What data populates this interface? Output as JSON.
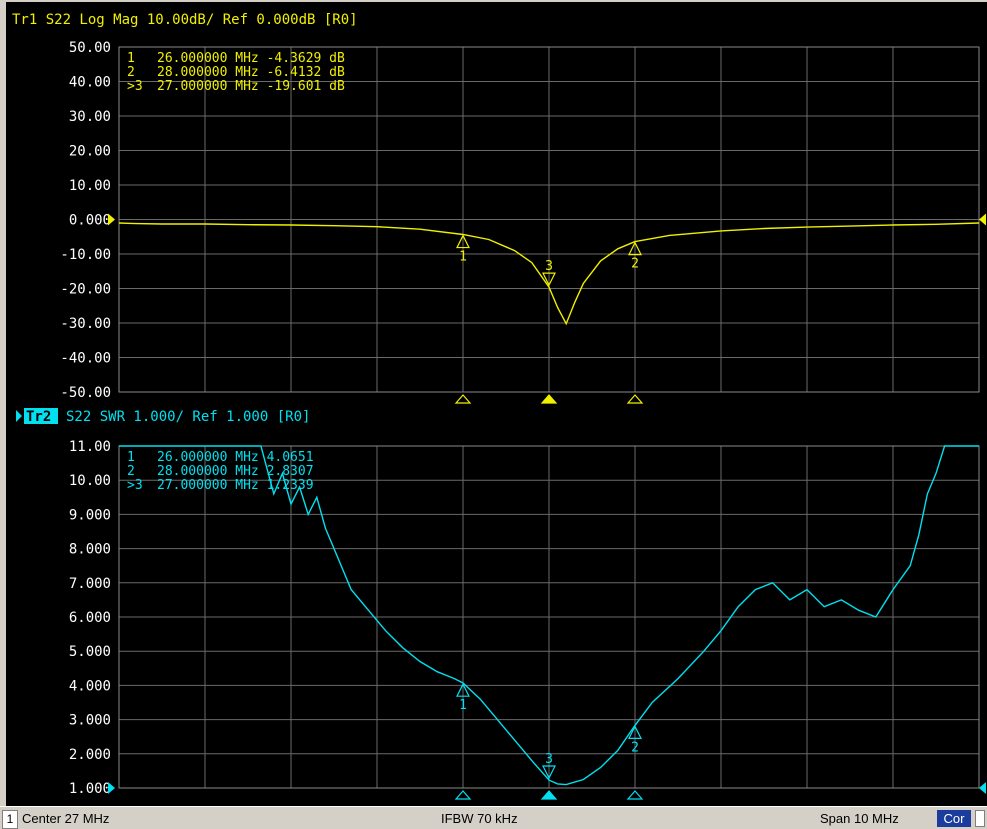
{
  "traces": {
    "tr1": {
      "title": "Tr1 S22 Log Mag 10.00dB/ Ref 0.000dB [R0]",
      "color": "#f0f000",
      "ref_color": "#f0f000"
    },
    "tr2": {
      "badge": "Tr2",
      "title": "S22 SWR 1.000/ Ref 1.000 [R0]",
      "color": "#00e0f0"
    }
  },
  "chart_data": [
    {
      "type": "line",
      "title": "Tr1 S22 Log Mag 10.00dB/ Ref 0.000dB [R0]",
      "ylim": [
        -50,
        50
      ],
      "xlim": [
        22,
        32
      ],
      "y_ticks": [
        "50.00",
        "40.00",
        "30.00",
        "20.00",
        "10.00",
        "0.000",
        "-10.00",
        "-20.00",
        "-30.00",
        "-40.00",
        "-50.00"
      ],
      "reference_value": 0,
      "grid": true,
      "markers": [
        {
          "label": "1",
          "x_mhz": 26.0,
          "value": -4.3629,
          "readout": "26.000000 MHz -4.3629 dB",
          "prefix": " "
        },
        {
          "label": "2",
          "x_mhz": 28.0,
          "value": -6.4132,
          "readout": "28.000000 MHz -6.4132 dB",
          "prefix": " "
        },
        {
          "label": "3",
          "x_mhz": 27.0,
          "value": -19.601,
          "readout": "27.000000 MHz -19.601 dB",
          "prefix": ">"
        }
      ],
      "series": [
        {
          "x": [
            22.0,
            22.2,
            22.5,
            23.0,
            23.5,
            24.0,
            24.5,
            25.0,
            25.5,
            26.0,
            26.3,
            26.6,
            26.8,
            27.0,
            27.1,
            27.2,
            27.3,
            27.4,
            27.6,
            27.8,
            28.0,
            28.4,
            29.0,
            29.5,
            30.0,
            30.5,
            31.0,
            31.5,
            32.0
          ],
          "y": [
            -1.0,
            -1.2,
            -1.3,
            -1.3,
            -1.5,
            -1.6,
            -1.8,
            -2.1,
            -2.8,
            -4.36,
            -5.8,
            -9.0,
            -12.5,
            -19.6,
            -25.5,
            -30.2,
            -24.0,
            -18.5,
            -12.0,
            -8.5,
            -6.41,
            -4.6,
            -3.3,
            -2.6,
            -2.2,
            -1.9,
            -1.6,
            -1.4,
            -1.0
          ]
        }
      ]
    },
    {
      "type": "line",
      "title": "Tr2 S22 SWR 1.000/ Ref 1.000 [R0]",
      "ylim": [
        1,
        11
      ],
      "xlim": [
        22,
        32
      ],
      "y_ticks": [
        "11.00",
        "10.00",
        "9.000",
        "8.000",
        "7.000",
        "6.000",
        "5.000",
        "4.000",
        "3.000",
        "2.000",
        "1.000"
      ],
      "reference_value": 1,
      "grid": true,
      "markers": [
        {
          "label": "1",
          "x_mhz": 26.0,
          "value": 4.0651,
          "readout": "26.000000 MHz 4.0651",
          "prefix": " "
        },
        {
          "label": "2",
          "x_mhz": 28.0,
          "value": 2.8307,
          "readout": "28.000000 MHz 2.8307",
          "prefix": " "
        },
        {
          "label": "3",
          "x_mhz": 27.0,
          "value": 1.2339,
          "readout": "27.000000 MHz 1.2339",
          "prefix": ">"
        }
      ],
      "series": [
        {
          "x": [
            22.0,
            23.65,
            23.8,
            23.9,
            24.0,
            24.1,
            24.2,
            24.3,
            24.4,
            24.5,
            24.7,
            24.9,
            25.1,
            25.3,
            25.5,
            25.7,
            25.9,
            26.0,
            26.2,
            26.4,
            26.6,
            26.8,
            27.0,
            27.1,
            27.2,
            27.4,
            27.6,
            27.8,
            28.0,
            28.2,
            28.5,
            28.8,
            29.0,
            29.2,
            29.4,
            29.6,
            29.8,
            30.0,
            30.2,
            30.4,
            30.6,
            30.8,
            31.0,
            31.2,
            31.3,
            31.4,
            31.5,
            31.6,
            32.0
          ],
          "y": [
            11.0,
            11.0,
            9.6,
            10.2,
            9.3,
            9.8,
            9.0,
            9.5,
            8.6,
            8.0,
            6.8,
            6.2,
            5.6,
            5.1,
            4.7,
            4.4,
            4.2,
            4.07,
            3.6,
            3.0,
            2.4,
            1.8,
            1.23,
            1.12,
            1.1,
            1.25,
            1.6,
            2.1,
            2.83,
            3.5,
            4.2,
            5.0,
            5.6,
            6.3,
            6.8,
            7.0,
            6.5,
            6.8,
            6.3,
            6.5,
            6.2,
            6.0,
            6.8,
            7.5,
            8.4,
            9.6,
            10.2,
            11.0,
            11.0
          ]
        }
      ]
    }
  ],
  "status": {
    "channel": "1",
    "center": "Center 27 MHz",
    "ifbw": "IFBW 70 kHz",
    "span": "Span 10 MHz",
    "cor": "Cor"
  }
}
